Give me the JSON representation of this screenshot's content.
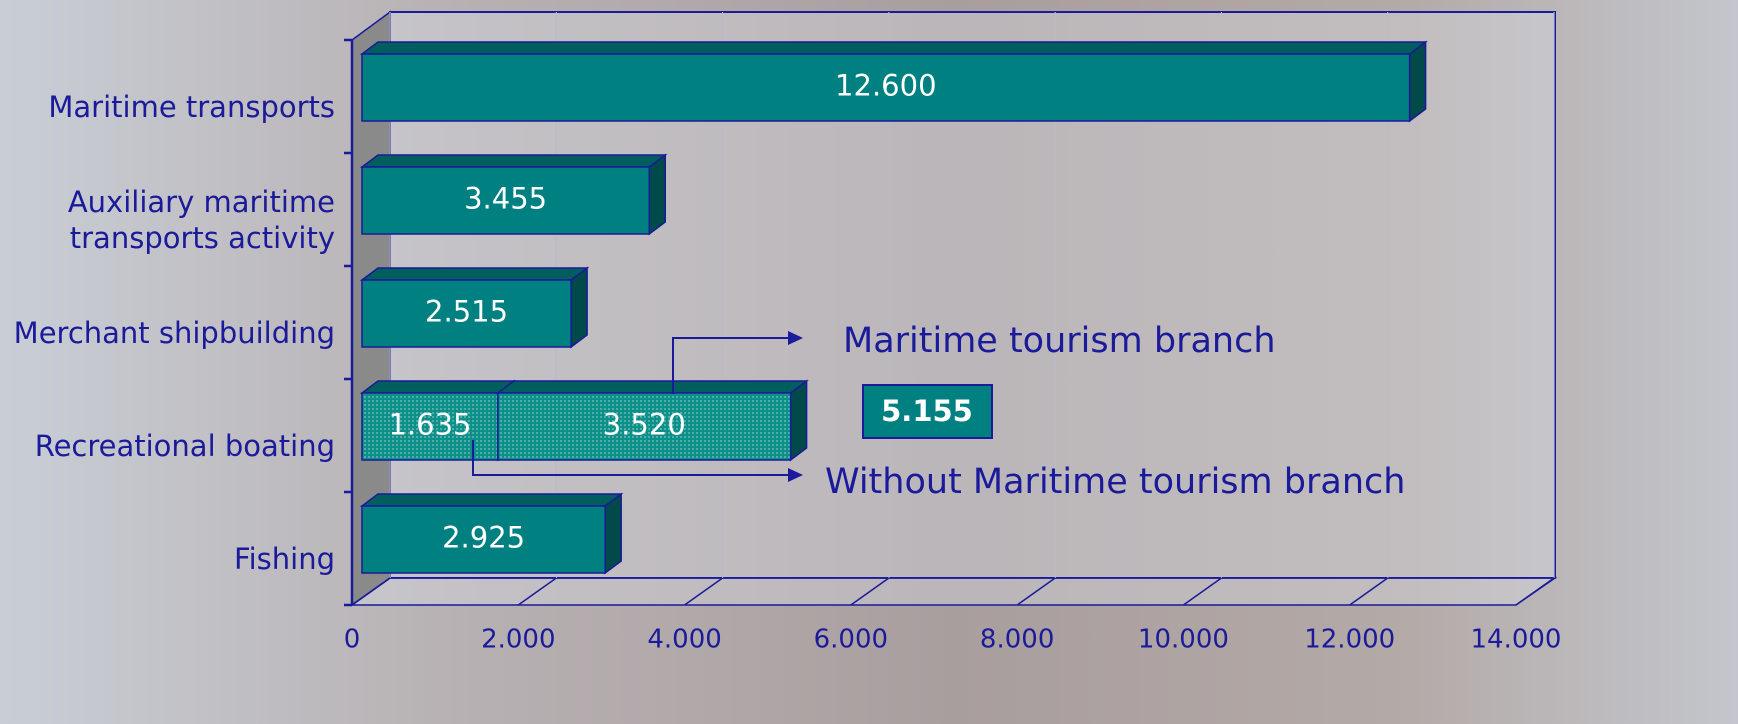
{
  "chart_data": {
    "type": "bar3d_horizontal",
    "categories": [
      "Maritime transports",
      "Auxiliary maritime transports activity",
      "Merchant shipbuilding",
      "Recreational boating",
      "Fishing"
    ],
    "series": [
      {
        "name": "Without Maritime tourism branch",
        "color": "#008080",
        "values": [
          12600,
          3455,
          2515,
          1635,
          2925
        ],
        "value_labels": [
          "12.600",
          "3.455",
          "2.515",
          "1.635",
          "2.925"
        ]
      },
      {
        "name": "Maritime tourism branch",
        "color": "#0a8a86",
        "values": [
          null,
          null,
          null,
          3520,
          null
        ],
        "value_labels": [
          null,
          null,
          null,
          "3.520",
          null
        ]
      }
    ],
    "xlim": [
      0,
      14000
    ],
    "xticks": [
      0,
      {
        "value": 2000,
        "label": "2.000"
      },
      {
        "value": 4000,
        "label": "4.000"
      },
      {
        "value": 6000,
        "label": "6.000"
      },
      {
        "value": 8000,
        "label": "8.000"
      },
      {
        "value": 10000,
        "label": "10.000"
      },
      {
        "value": 12000,
        "label": "12.000"
      },
      {
        "value": 14000,
        "label": "14.000"
      }
    ],
    "grid": true,
    "total_label": "5.155"
  }
}
